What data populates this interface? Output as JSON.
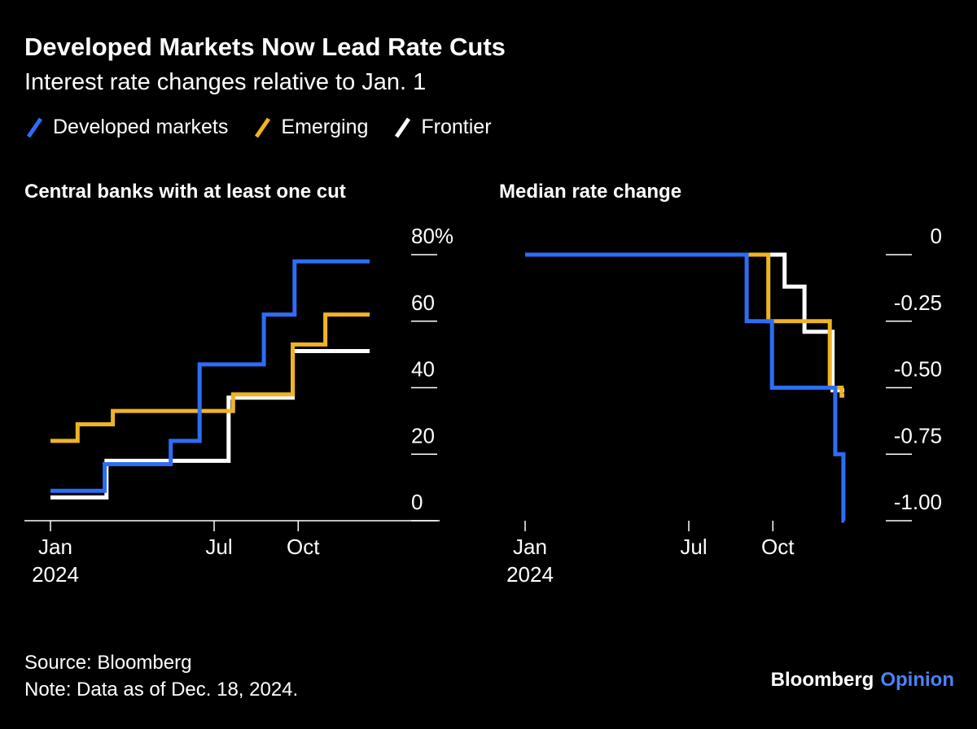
{
  "header": {
    "title": "Developed Markets Now Lead Rate Cuts",
    "subtitle": "Interest rate changes relative to Jan. 1"
  },
  "legend": [
    {
      "label": "Developed markets",
      "color": "#2D6DF6"
    },
    {
      "label": "Emerging",
      "color": "#F0B323"
    },
    {
      "label": "Frontier",
      "color": "#FFFFFF"
    }
  ],
  "chart_data": [
    {
      "type": "step-line",
      "title": "Central banks with at least one cut",
      "unit": "percent of central banks",
      "x_domain_days": [
        0,
        353
      ],
      "x_ticks": [
        {
          "day": 0,
          "label": "Jan",
          "sublabel": "2024"
        },
        {
          "day": 181,
          "label": "Jul"
        },
        {
          "day": 274,
          "label": "Oct"
        }
      ],
      "y_domain": [
        0,
        80
      ],
      "y_ticks": [
        {
          "value": 80,
          "label": "80%"
        },
        {
          "value": 60,
          "label": "60"
        },
        {
          "value": 40,
          "label": "40"
        },
        {
          "value": 20,
          "label": "20"
        },
        {
          "value": 0,
          "label": "0"
        }
      ],
      "y_label_align": "left",
      "baseline_axis": true,
      "grid": false,
      "legend_position": "top",
      "series": [
        {
          "name": "Frontier",
          "color": "#FFFFFF",
          "points": [
            [
              0,
              7
            ],
            [
              62,
              18
            ],
            [
              197,
              37
            ],
            [
              268,
              51
            ],
            [
              353,
              51
            ]
          ]
        },
        {
          "name": "Emerging",
          "color": "#F0B323",
          "points": [
            [
              0,
              24
            ],
            [
              30,
              29
            ],
            [
              69,
              33
            ],
            [
              202,
              38
            ],
            [
              268,
              53
            ],
            [
              304,
              62
            ],
            [
              353,
              62
            ]
          ]
        },
        {
          "name": "Developed markets",
          "color": "#2D6DF6",
          "points": [
            [
              0,
              9
            ],
            [
              60,
              17
            ],
            [
              133,
              24
            ],
            [
              165,
              47
            ],
            [
              236,
              62
            ],
            [
              270,
              78
            ],
            [
              353,
              78
            ]
          ]
        }
      ]
    },
    {
      "type": "step-line",
      "title": "Median rate change",
      "unit": "percentage points",
      "x_domain_days": [
        0,
        353
      ],
      "x_ticks": [
        {
          "day": 0,
          "label": "Jan",
          "sublabel": "2024"
        },
        {
          "day": 181,
          "label": "Jul"
        },
        {
          "day": 274,
          "label": "Oct"
        }
      ],
      "y_domain": [
        -1.0,
        0
      ],
      "y_ticks": [
        {
          "value": 0,
          "label": "0"
        },
        {
          "value": -0.25,
          "label": "-0.25"
        },
        {
          "value": -0.5,
          "label": "-0.50"
        },
        {
          "value": -0.75,
          "label": "-0.75"
        },
        {
          "value": -1.0,
          "label": "-1.00"
        }
      ],
      "y_label_align": "right",
      "baseline_axis": false,
      "grid": false,
      "legend_position": "top",
      "series": [
        {
          "name": "Frontier",
          "color": "#FFFFFF",
          "points": [
            [
              0,
              0
            ],
            [
              287,
              -0.12
            ],
            [
              309,
              -0.29
            ],
            [
              340,
              -0.51
            ],
            [
              353,
              -0.51
            ]
          ]
        },
        {
          "name": "Emerging",
          "color": "#F0B323",
          "points": [
            [
              0,
              0
            ],
            [
              269,
              -0.25
            ],
            [
              337,
              -0.5
            ],
            [
              350,
              -0.53
            ],
            [
              353,
              -0.53
            ]
          ]
        },
        {
          "name": "Developed markets",
          "color": "#2D6DF6",
          "points": [
            [
              0,
              0
            ],
            [
              245,
              -0.25
            ],
            [
              273,
              -0.5
            ],
            [
              343,
              -0.75
            ],
            [
              352,
              -1.0
            ],
            [
              353,
              -1.0
            ]
          ]
        }
      ]
    }
  ],
  "footer": {
    "source": "Source: Bloomberg",
    "note": "Note: Data as of Dec. 18, 2024.",
    "brand": "Bloomberg",
    "brand_suffix": "Opinion",
    "brand_suffix_color": "#4C82F7"
  }
}
